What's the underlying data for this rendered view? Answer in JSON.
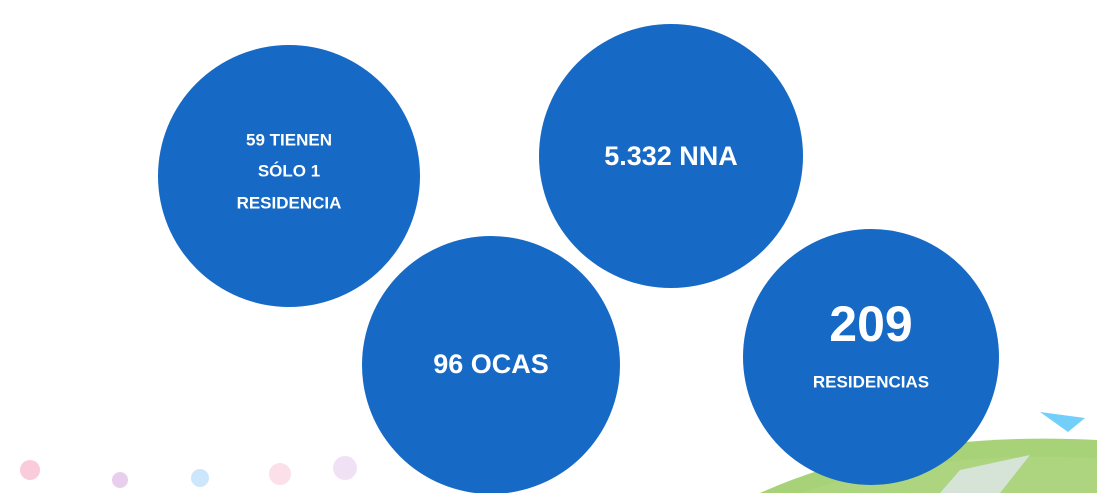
{
  "circles": [
    {
      "lines": [
        "59 TIENEN",
        "SÓLO 1",
        "RESIDENCIA"
      ]
    },
    {
      "lines": [
        "5.332 NNA"
      ]
    },
    {
      "lines": [
        "96 OCAS"
      ]
    },
    {
      "lines": [
        "209",
        "RESIDENCIAS"
      ]
    }
  ]
}
